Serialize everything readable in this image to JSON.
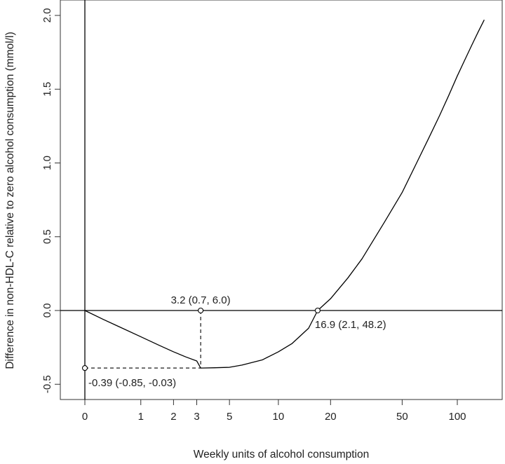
{
  "chart_data": {
    "type": "line",
    "title": "",
    "xlabel": "Weekly units of alcohol consumption",
    "ylabel": "Difference in non-HDL-C relative to zero alcohol consumption (mmol/l)",
    "x_scale": "log(1 + x)",
    "xlim": [
      0,
      140
    ],
    "ylim": [
      -0.6,
      2.1
    ],
    "x_ticks": [
      0,
      1,
      2,
      3,
      5,
      10,
      20,
      50,
      100
    ],
    "x_tick_labels": [
      "0",
      "1",
      "2",
      "3",
      "5",
      "10",
      "20",
      "50",
      "100"
    ],
    "y_ticks": [
      -0.5,
      0,
      0.5,
      1,
      1.5,
      2
    ],
    "y_tick_labels": [
      "-0.5",
      "0.0",
      "0.5",
      "1.0",
      "1.5",
      "2.0"
    ],
    "grid": false,
    "series": [
      {
        "x": [
          0,
          0.25,
          0.5,
          1,
          1.5,
          2,
          2.5,
          3,
          3.2,
          4,
          5,
          6,
          8,
          10,
          12,
          15,
          16.9,
          20,
          25,
          30,
          40,
          50,
          60,
          70,
          80,
          90,
          100,
          110,
          120,
          130,
          140
        ],
        "values": [
          0,
          -0.059,
          -0.105,
          -0.178,
          -0.235,
          -0.28,
          -0.315,
          -0.342,
          -0.39,
          -0.388,
          -0.385,
          -0.37,
          -0.335,
          -0.28,
          -0.225,
          -0.12,
          0,
          0.08,
          0.22,
          0.35,
          0.6,
          0.8,
          1.0,
          1.17,
          1.32,
          1.46,
          1.59,
          1.7,
          1.8,
          1.89,
          1.97
        ]
      }
    ],
    "annotations": [
      {
        "x": 3.2,
        "y": 0,
        "text": "3.2 (0.7, 6.0)"
      },
      {
        "x": 16.9,
        "y": 0,
        "text": "16.9 (2.1, 48.2)"
      },
      {
        "x": 0,
        "y": -0.39,
        "text": "-0.39 (-0.85, -0.03)"
      }
    ]
  }
}
